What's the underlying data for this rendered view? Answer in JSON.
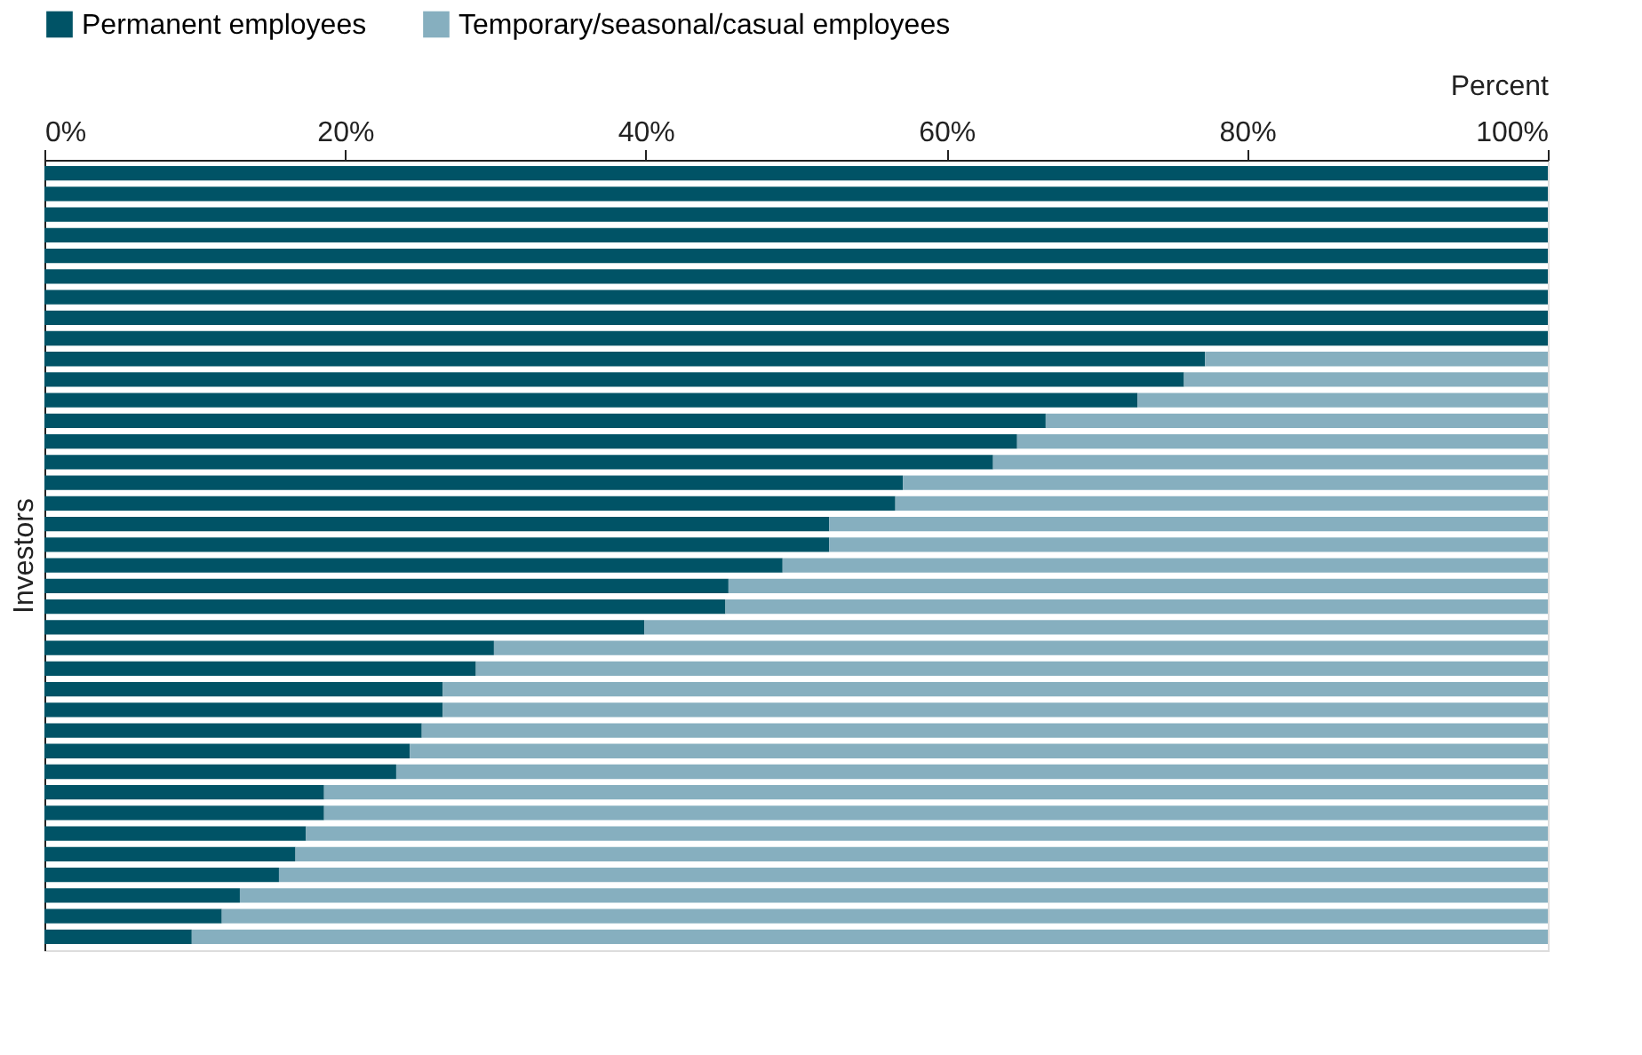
{
  "chart_data": {
    "type": "bar",
    "orientation": "horizontal",
    "stacked": true,
    "xlabel": "Percent",
    "ylabel": "Investors",
    "legend": "top",
    "grid": false,
    "tick_labels": "x",
    "categories": [
      null,
      null,
      null,
      null,
      null,
      null,
      null,
      null,
      null,
      null,
      null,
      null,
      null,
      null,
      null,
      null,
      null,
      null,
      null,
      null,
      null,
      null,
      null,
      null,
      null,
      null,
      null,
      null,
      null,
      null,
      null,
      null,
      null,
      null,
      null,
      null,
      null,
      null
    ],
    "xlim": [
      0,
      100
    ],
    "xticks": [
      {
        "value": 0,
        "label": "0%"
      },
      {
        "value": 20,
        "label": "20%"
      },
      {
        "value": 40,
        "label": "40%"
      },
      {
        "value": 60,
        "label": "60%"
      },
      {
        "value": 80,
        "label": "80%"
      },
      {
        "value": 100,
        "label": "100%"
      }
    ],
    "series": [
      {
        "name": "Permanent employees",
        "color": "#005366",
        "values": [
          100,
          100,
          100,
          100,
          100,
          100,
          100,
          100,
          100,
          77.2,
          75.8,
          72.7,
          66.6,
          64.7,
          63.1,
          57.1,
          56.6,
          52.2,
          52.2,
          49.1,
          45.5,
          45.3,
          39.9,
          29.9,
          28.7,
          26.5,
          26.5,
          25.1,
          24.3,
          23.4,
          18.6,
          18.6,
          17.4,
          16.7,
          15.6,
          13.0,
          11.8,
          9.8
        ]
      },
      {
        "name": "Temporary/seasonal/casual employees",
        "color": "#86afbf",
        "values": [
          0,
          0,
          0,
          0,
          0,
          0,
          0,
          0,
          0,
          22.8,
          24.2,
          27.3,
          33.4,
          35.3,
          36.9,
          42.9,
          43.4,
          47.8,
          47.8,
          50.9,
          54.5,
          54.7,
          60.1,
          70.1,
          71.3,
          73.5,
          73.5,
          74.9,
          75.7,
          76.6,
          81.4,
          81.4,
          82.6,
          83.3,
          84.4,
          87.0,
          88.2,
          90.2
        ]
      }
    ]
  }
}
